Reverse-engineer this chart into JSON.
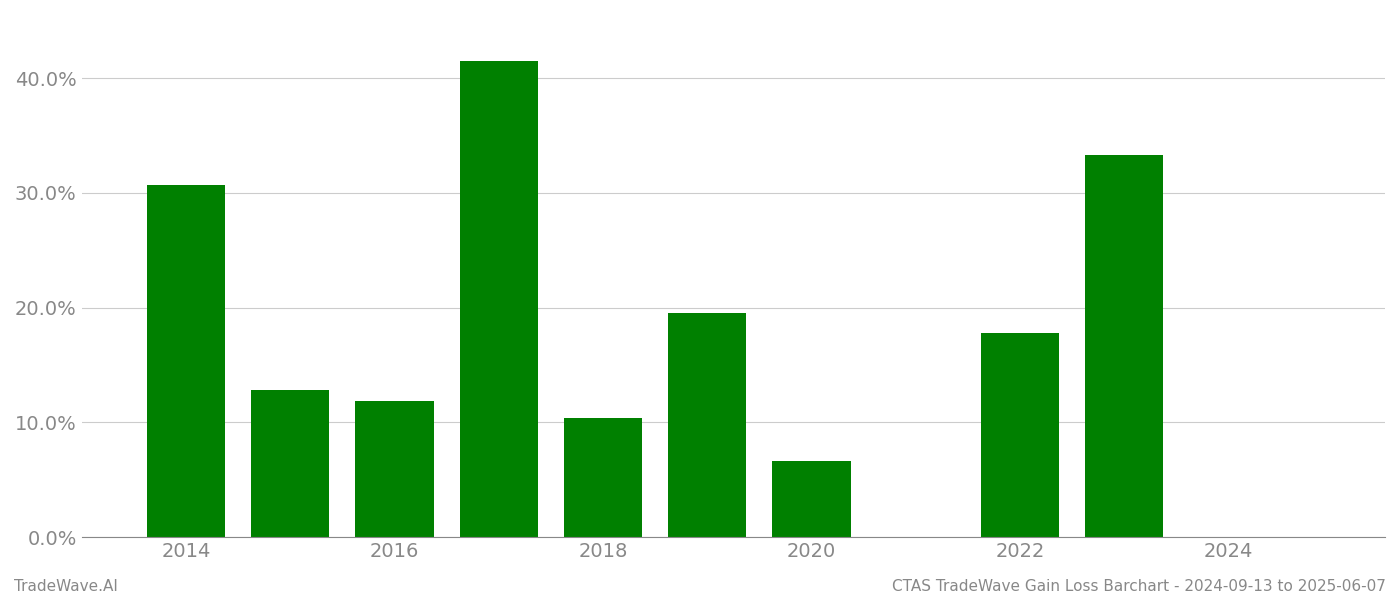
{
  "bar_positions": [
    2014,
    2015,
    2016,
    2017,
    2018,
    2019,
    2020,
    2022,
    2023,
    2024
  ],
  "bar_values": [
    0.307,
    0.128,
    0.119,
    0.415,
    0.104,
    0.195,
    0.066,
    0.178,
    0.333,
    0.0
  ],
  "bar_color": "#008000",
  "background_color": "#ffffff",
  "footer_left": "TradeWave.AI",
  "footer_right": "CTAS TradeWave Gain Loss Barchart - 2024-09-13 to 2025-06-07",
  "ylim": [
    0,
    0.455
  ],
  "yticks": [
    0.0,
    0.1,
    0.2,
    0.3,
    0.4
  ],
  "xticks": [
    2014,
    2016,
    2018,
    2020,
    2022,
    2024
  ],
  "xlim": [
    2013.0,
    2025.5
  ],
  "grid_color": "#cccccc",
  "tick_color": "#888888",
  "footer_fontsize": 11,
  "bar_width": 0.75,
  "tick_labelsize": 14
}
